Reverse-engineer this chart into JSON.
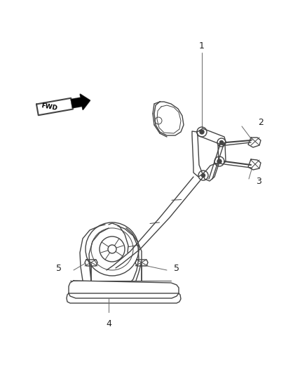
{
  "background_color": "#ffffff",
  "line_color": "#444444",
  "label_color": "#222222",
  "figsize": [
    4.38,
    5.33
  ],
  "dpi": 100,
  "xlim": [
    0,
    438
  ],
  "ylim": [
    0,
    533
  ]
}
